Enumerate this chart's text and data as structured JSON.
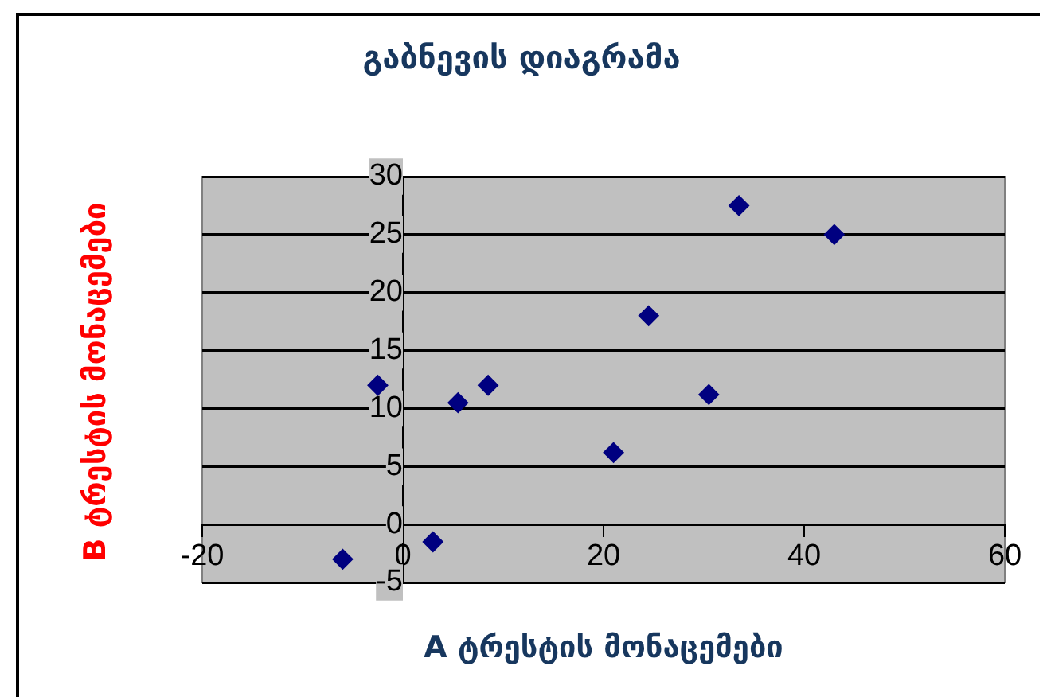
{
  "chart_data": {
    "type": "scatter",
    "title": "გაბნევის დიაგრამა",
    "xlabel": "A ტრესტის მონაცემები",
    "ylabel": "B ტრესტის მონაცემები",
    "x": [
      -6,
      -2.5,
      3,
      5.5,
      8.5,
      21,
      24.5,
      30.5,
      33.5,
      43
    ],
    "series": [
      {
        "color": "#000080",
        "values": [
          -3,
          12,
          -1.5,
          10.5,
          12,
          6.2,
          18,
          11.2,
          27.5,
          25
        ]
      }
    ],
    "xlim": [
      -20,
      60
    ],
    "xticks": [
      -20,
      0,
      20,
      40,
      60
    ],
    "ylim": [
      -5,
      30
    ],
    "yticks": [
      -5,
      0,
      5,
      10,
      15,
      20,
      25,
      30
    ],
    "grid": "y",
    "marker": "diamond",
    "legend": false
  }
}
